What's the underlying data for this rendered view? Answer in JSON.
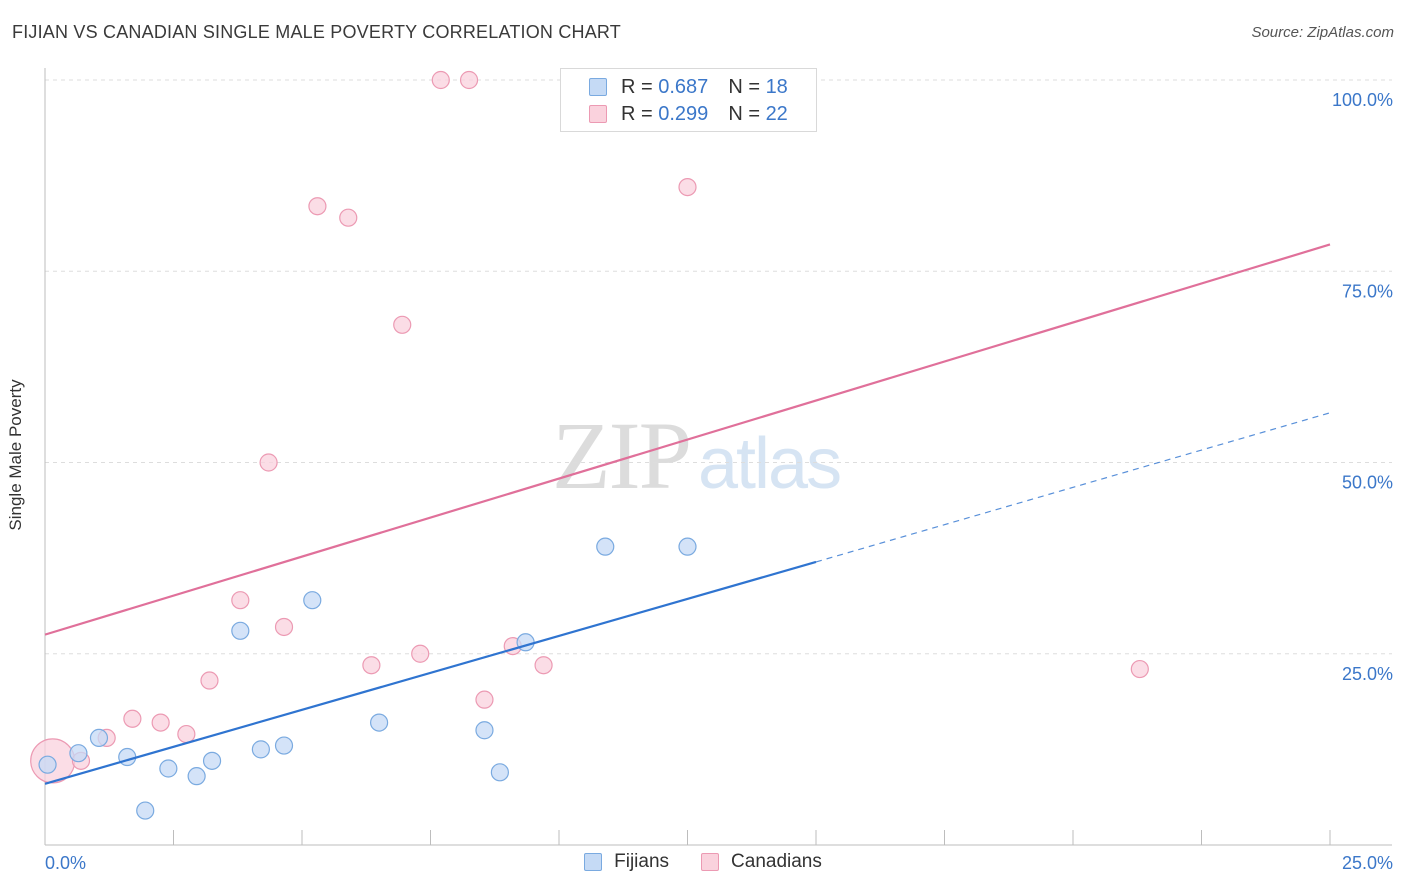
{
  "header": {
    "title": "FIJIAN VS CANADIAN SINGLE MALE POVERTY CORRELATION CHART",
    "source": "Source: ZipAtlas.com"
  },
  "watermark": {
    "zip": "ZIP",
    "atlas": "atlas"
  },
  "legend_top": {
    "rows": [
      {
        "r_label": "R =",
        "r_value": "0.687",
        "n_label": "N =",
        "n_value": "18"
      },
      {
        "r_label": "R =",
        "r_value": "0.299",
        "n_label": "N =",
        "n_value": "22"
      }
    ]
  },
  "colors": {
    "fijian_fill": "#c5daf5",
    "fijian_stroke": "#7aaae0",
    "fijian_line": "#2f74d0",
    "canadian_fill": "#fad2dd",
    "canadian_stroke": "#ec9ab3",
    "canadian_line": "#e0709a",
    "grid": "#dddddd",
    "tick_text": "#3b77c9",
    "axis": "#bdbdbd"
  },
  "chart_data": {
    "type": "scatter",
    "title": "FIJIAN VS CANADIAN SINGLE MALE POVERTY CORRELATION CHART",
    "xlabel": "",
    "ylabel": "Single Male Poverty",
    "xlim": [
      0,
      25
    ],
    "ylim": [
      0,
      100
    ],
    "x_tick_labels": [
      "0.0%",
      "25.0%"
    ],
    "y_ticks": [
      25,
      50,
      75,
      100
    ],
    "y_tick_labels": [
      "25.0%",
      "50.0%",
      "75.0%",
      "100.0%"
    ],
    "grid": true,
    "legend_position": "bottom-center",
    "series": [
      {
        "name": "Fijians",
        "r": 0.687,
        "n": 18,
        "points": [
          {
            "x": 0.05,
            "y": 10.5
          },
          {
            "x": 0.65,
            "y": 12.0
          },
          {
            "x": 1.05,
            "y": 14.0
          },
          {
            "x": 1.6,
            "y": 11.5
          },
          {
            "x": 1.95,
            "y": 4.5
          },
          {
            "x": 2.4,
            "y": 10.0
          },
          {
            "x": 2.95,
            "y": 9.0
          },
          {
            "x": 3.25,
            "y": 11.0
          },
          {
            "x": 3.8,
            "y": 28.0
          },
          {
            "x": 4.2,
            "y": 12.5
          },
          {
            "x": 4.65,
            "y": 13.0
          },
          {
            "x": 5.2,
            "y": 32.0
          },
          {
            "x": 6.5,
            "y": 16.0
          },
          {
            "x": 8.55,
            "y": 15.0
          },
          {
            "x": 8.85,
            "y": 9.5
          },
          {
            "x": 9.35,
            "y": 26.5
          },
          {
            "x": 10.9,
            "y": 39.0
          },
          {
            "x": 12.5,
            "y": 39.0
          }
        ],
        "trend": {
          "x0": 0,
          "y0": 8.0,
          "x1": 15.0,
          "y1": 37.0,
          "dashed_to_x": 25,
          "dashed_to_y": 56.5
        }
      },
      {
        "name": "Canadians",
        "r": 0.299,
        "n": 22,
        "points": [
          {
            "x": 0.15,
            "y": 11.0,
            "size": "large"
          },
          {
            "x": 0.7,
            "y": 11.0
          },
          {
            "x": 1.2,
            "y": 14.0
          },
          {
            "x": 1.7,
            "y": 16.5
          },
          {
            "x": 2.25,
            "y": 16.0
          },
          {
            "x": 2.75,
            "y": 14.5
          },
          {
            "x": 3.2,
            "y": 21.5
          },
          {
            "x": 3.8,
            "y": 32.0
          },
          {
            "x": 4.35,
            "y": 50.0
          },
          {
            "x": 4.65,
            "y": 28.5
          },
          {
            "x": 5.3,
            "y": 83.5
          },
          {
            "x": 5.9,
            "y": 82.0
          },
          {
            "x": 6.35,
            "y": 23.5
          },
          {
            "x": 6.95,
            "y": 68.0
          },
          {
            "x": 7.3,
            "y": 25.0
          },
          {
            "x": 7.7,
            "y": 100.0
          },
          {
            "x": 8.25,
            "y": 100.0
          },
          {
            "x": 8.55,
            "y": 19.0
          },
          {
            "x": 9.1,
            "y": 26.0
          },
          {
            "x": 9.7,
            "y": 23.5
          },
          {
            "x": 12.5,
            "y": 86.0
          },
          {
            "x": 21.3,
            "y": 23.0
          }
        ],
        "trend": {
          "x0": 0,
          "y0": 27.5,
          "x1": 25,
          "y1": 78.5
        }
      }
    ]
  },
  "legend_bottom": [
    "Fijians",
    "Canadians"
  ]
}
